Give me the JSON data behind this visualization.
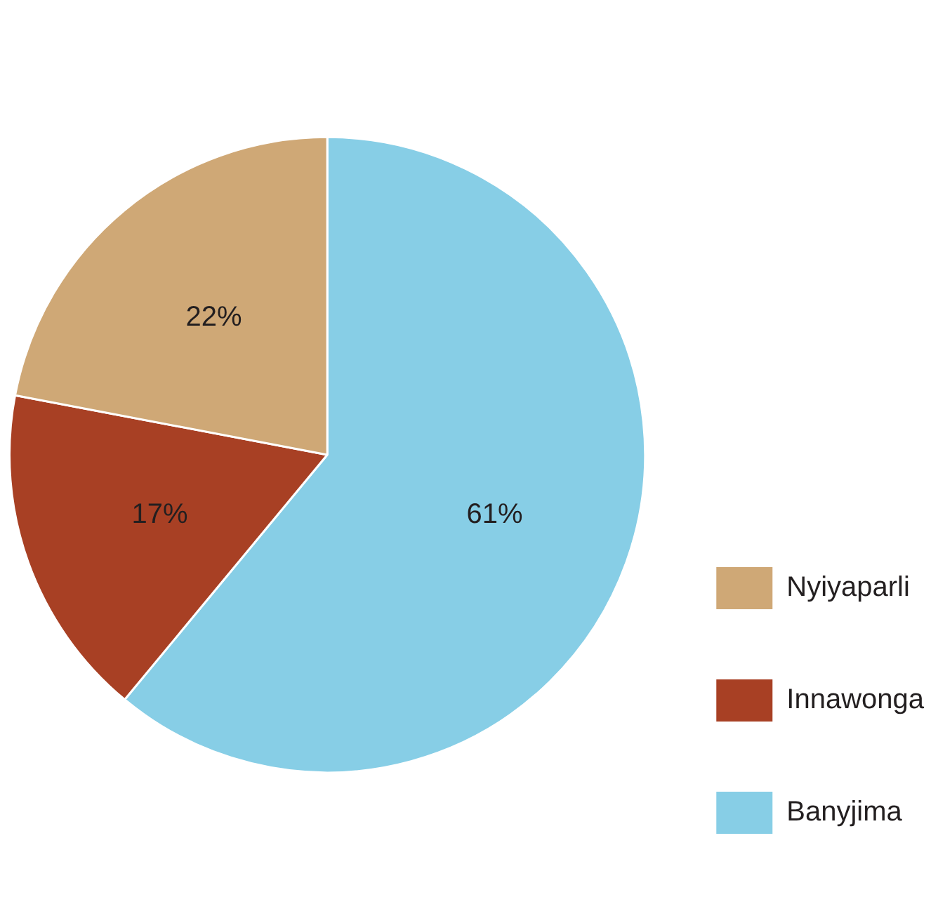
{
  "chart_data": {
    "type": "pie",
    "categories": [
      "Banyjima",
      "Innawonga",
      "Nyiyaparli"
    ],
    "values": [
      61,
      17,
      22
    ],
    "colors": [
      "#87cee6",
      "#a84024",
      "#cfa876"
    ],
    "value_labels": [
      "61%",
      "17%",
      "22%"
    ],
    "legend": "bottom right"
  }
}
